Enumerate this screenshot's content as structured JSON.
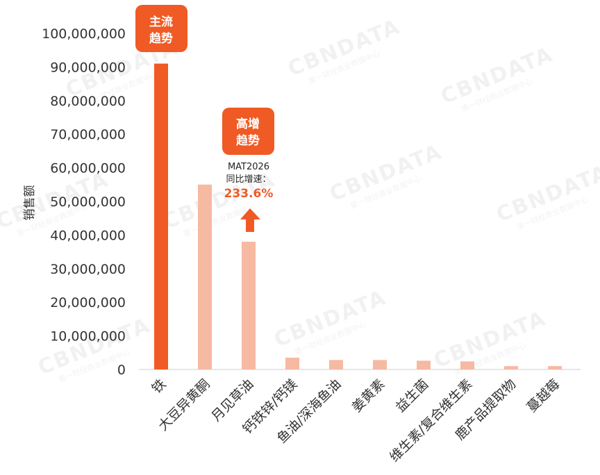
{
  "chart_data": {
    "type": "bar",
    "ylabel": "销售额",
    "ylim": [
      0,
      100000000
    ],
    "yticks": [
      "0",
      "10,000,000",
      "20,000,000",
      "30,000,000",
      "40,000,000",
      "50,000,000",
      "60,000,000",
      "70,000,000",
      "80,000,000",
      "90,000,000",
      "100,000,000"
    ],
    "categories": [
      "铁",
      "大豆异黄酮",
      "月见草油",
      "钙铁锌/钙镁",
      "鱼油/深海鱼油",
      "姜黄素",
      "益生菌",
      "维生素/复合维生素",
      "鹿产品提取物",
      "蔓越莓"
    ],
    "values": [
      91000000,
      55000000,
      38000000,
      3500000,
      2800000,
      2800000,
      2600000,
      2400000,
      1000000,
      1000000
    ],
    "highlight_color": "#f05a24",
    "bar_color": "#f6b9a1",
    "highlight_index": 0
  },
  "badges": {
    "mainstream": {
      "line1": "主流",
      "line2": "趋势"
    },
    "high_growth": {
      "line1": "高增",
      "line2": "趋势"
    }
  },
  "annotation": {
    "line1": "MAT2026",
    "line2": "同比增速：",
    "value": "233.6%"
  },
  "watermark": {
    "brand": "CBNDATA",
    "sub": "第一财经商业数据中心"
  }
}
